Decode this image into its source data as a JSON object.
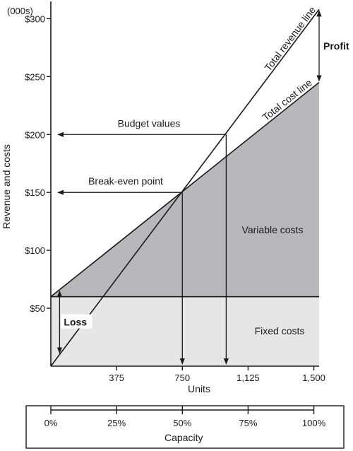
{
  "chart_data": {
    "type": "line",
    "units_label": "(000s)",
    "ylabel": "Revenue and costs",
    "xlabel": "Units",
    "xlim": [
      0,
      1530
    ],
    "ylim": [
      0,
      310
    ],
    "x_ticks": [
      {
        "value": 375,
        "label": "375"
      },
      {
        "value": 750,
        "label": "750"
      },
      {
        "value": 1125,
        "label": "1,125"
      },
      {
        "value": 1500,
        "label": "1,500"
      }
    ],
    "y_ticks": [
      {
        "value": 50,
        "label": "$50"
      },
      {
        "value": 100,
        "label": "$100"
      },
      {
        "value": 150,
        "label": "$150"
      },
      {
        "value": 200,
        "label": "$200"
      },
      {
        "value": 250,
        "label": "$250"
      },
      {
        "value": 300,
        "label": "$300"
      }
    ],
    "series": [
      {
        "name": "Total revenue line",
        "x": [
          0,
          1530
        ],
        "y": [
          0,
          308
        ]
      },
      {
        "name": "Total cost line",
        "x": [
          0,
          1530
        ],
        "y": [
          60,
          245
        ]
      },
      {
        "name": "Fixed costs",
        "x": [
          0,
          1530
        ],
        "y": [
          60,
          60
        ]
      }
    ],
    "regions": {
      "fixed_costs": "Fixed costs",
      "variable_costs": "Variable costs"
    },
    "annotations": {
      "break_even": {
        "label": "Break-even point",
        "x": 750,
        "y": 150
      },
      "budget": {
        "label": "Budget values",
        "x": 1000,
        "y": 200
      },
      "profit": {
        "label": "Profit",
        "x": 1530
      },
      "loss": {
        "label": "Loss",
        "x": 50
      }
    },
    "capacity": {
      "title": "Capacity",
      "ticks": [
        {
          "value": 0,
          "label": "0%"
        },
        {
          "value": 25,
          "label": "25%"
        },
        {
          "value": 50,
          "label": "50%"
        },
        {
          "value": 75,
          "label": "75%"
        },
        {
          "value": 100,
          "label": "100%"
        }
      ]
    },
    "colors": {
      "fixed_fill": "#e6e6e7",
      "variable_fill": "#b8b8bc",
      "line": "#1a1a1a"
    }
  }
}
